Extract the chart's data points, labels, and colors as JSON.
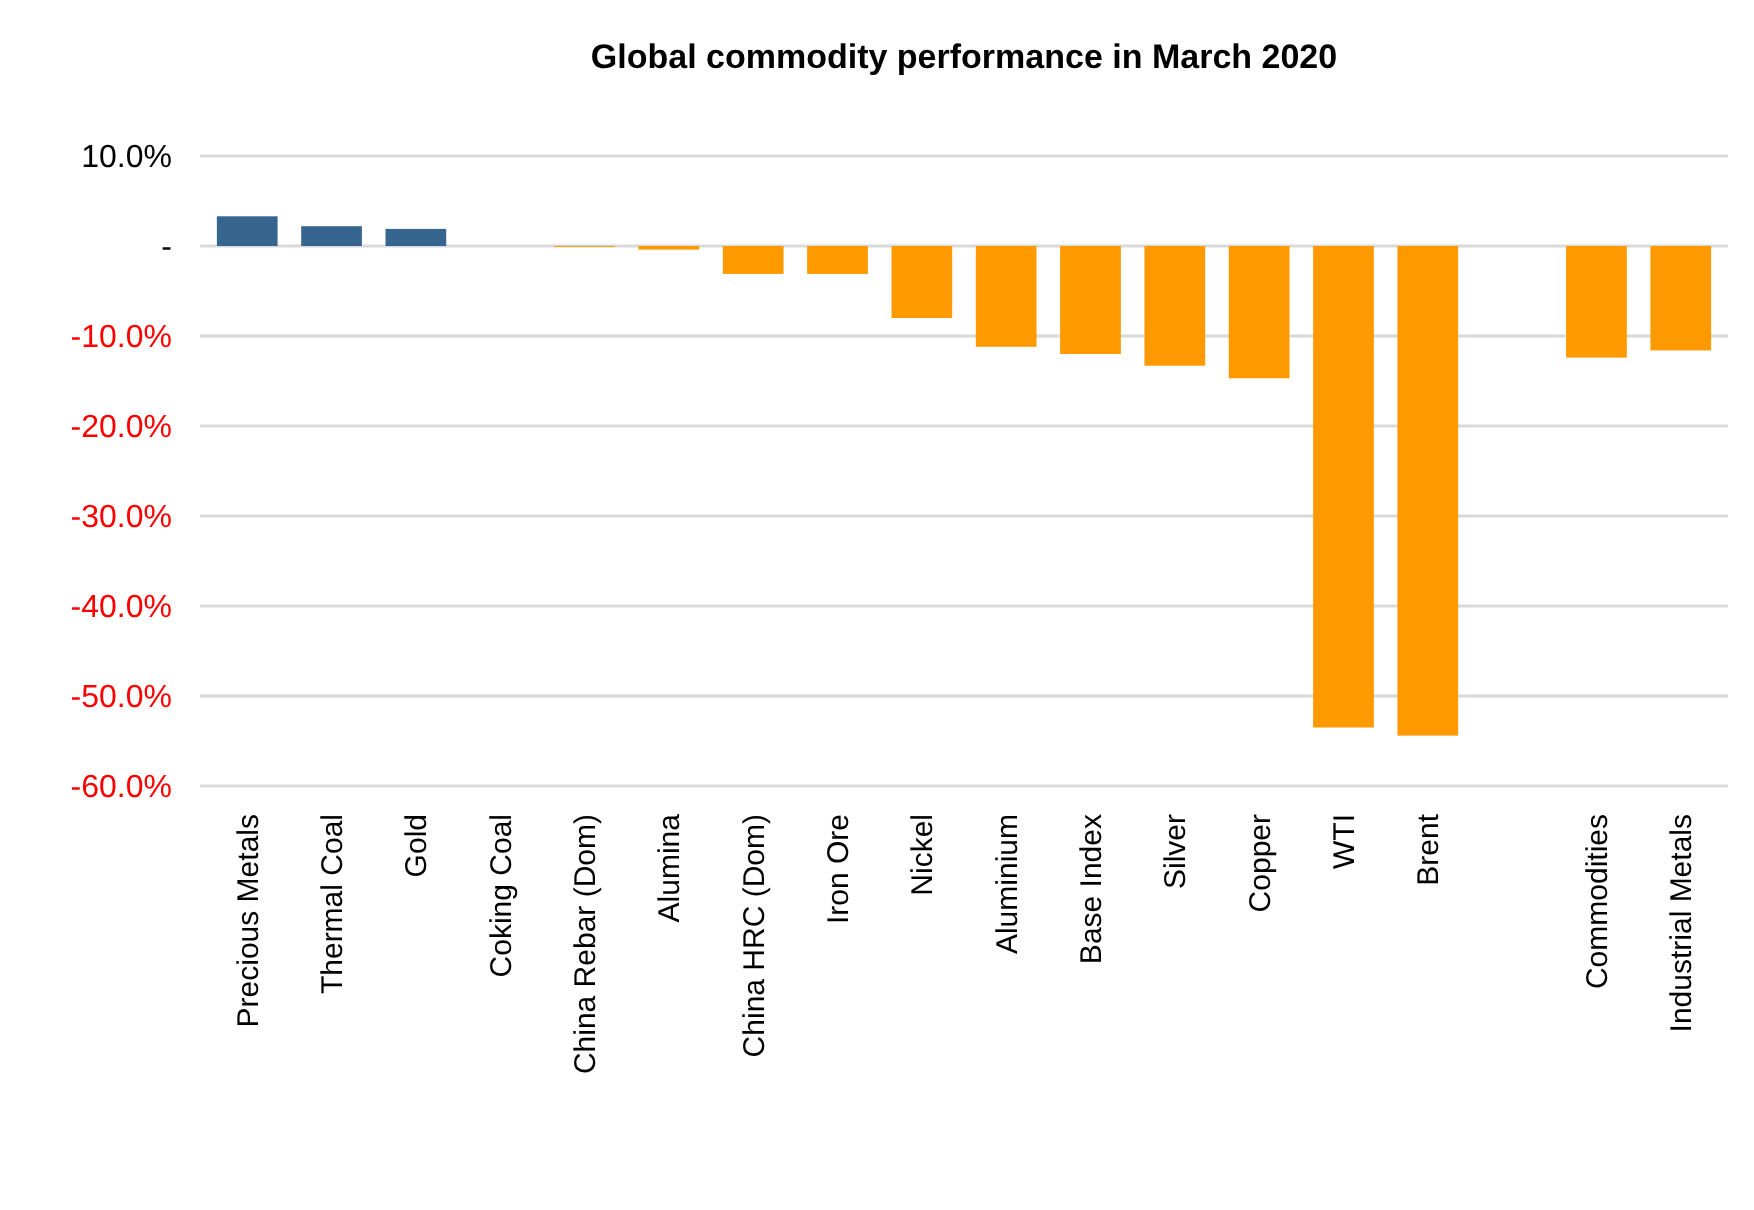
{
  "chart_data": {
    "type": "bar",
    "title": "Global commodity performance in March 2020",
    "categories": [
      "Precious Metals",
      "Thermal Coal",
      "Gold",
      "Coking Coal",
      "China Rebar (Dom)",
      "Alumina",
      "China HRC (Dom)",
      "Iron Ore",
      "Nickel",
      "Aluminium",
      "Base Index",
      "Silver",
      "Copper",
      "WTI",
      "Brent",
      null,
      "Commodities",
      "Industrial Metals"
    ],
    "values": [
      3.3,
      2.2,
      1.9,
      0,
      -0.1,
      -0.4,
      -3.1,
      -3.1,
      -8.0,
      -11.2,
      -12.0,
      -13.3,
      -14.7,
      -53.5,
      -54.4,
      null,
      -12.4,
      -11.6
    ],
    "colors": [
      "#366590",
      "#366590",
      "#366590",
      "#ff9900",
      "#ff9900",
      "#ff9900",
      "#ff9900",
      "#ff9900",
      "#ff9900",
      "#ff9900",
      "#ff9900",
      "#ff9900",
      "#ff9900",
      "#ff9900",
      "#ff9900",
      null,
      "#ff9900",
      "#ff9900"
    ],
    "ylim": [
      -60,
      10
    ],
    "yticks": [
      {
        "value": 10,
        "label": "10.0%"
      },
      {
        "value": 0,
        "label": "-"
      },
      {
        "value": -10,
        "label": "-10.0%"
      },
      {
        "value": -20,
        "label": "-20.0%"
      },
      {
        "value": -30,
        "label": "-30.0%"
      },
      {
        "value": -40,
        "label": "-40.0%"
      },
      {
        "value": -50,
        "label": "-50.0%"
      },
      {
        "value": -60,
        "label": "-60.0%"
      }
    ],
    "grid": "y"
  }
}
